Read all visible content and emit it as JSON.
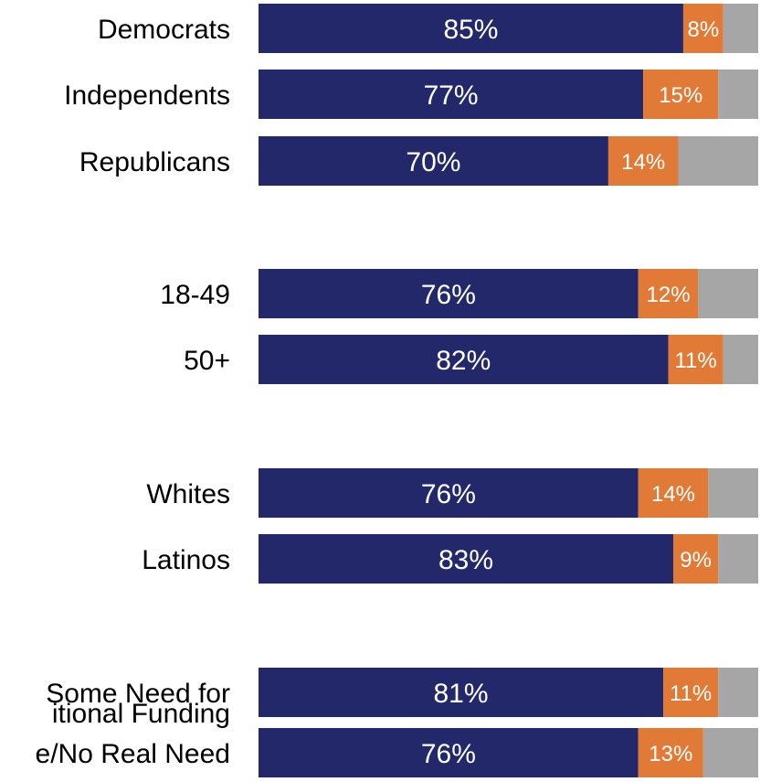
{
  "chart_data": {
    "type": "bar",
    "orientation": "horizontal",
    "stacked": true,
    "xlim": [
      0,
      100
    ],
    "grid": false,
    "legend": "none",
    "categories": [
      "Democrats",
      "Independents",
      "Republicans",
      "18-49",
      "50+",
      "Whites",
      "Latinos",
      "Some Need for",
      "e/No Real Need"
    ],
    "extra_text": [
      "itional Funding"
    ],
    "series": [
      {
        "color": "#22286a",
        "values": [
          85,
          77,
          70,
          76,
          82,
          76,
          83,
          81,
          76
        ],
        "labels": [
          "85%",
          "77%",
          "70%",
          "76%",
          "82%",
          "76%",
          "83%",
          "81%",
          "76%"
        ]
      },
      {
        "color": "#e07a36",
        "values": [
          8,
          15,
          14,
          12,
          11,
          14,
          9,
          11,
          13
        ],
        "labels": [
          "8%",
          "15%",
          "14%",
          "12%",
          "11%",
          "14%",
          "9%",
          "11%",
          "13%"
        ]
      },
      {
        "color": "#a6a6a6",
        "values": [
          7,
          8,
          16,
          12,
          7,
          10,
          8,
          8,
          11
        ]
      }
    ]
  }
}
